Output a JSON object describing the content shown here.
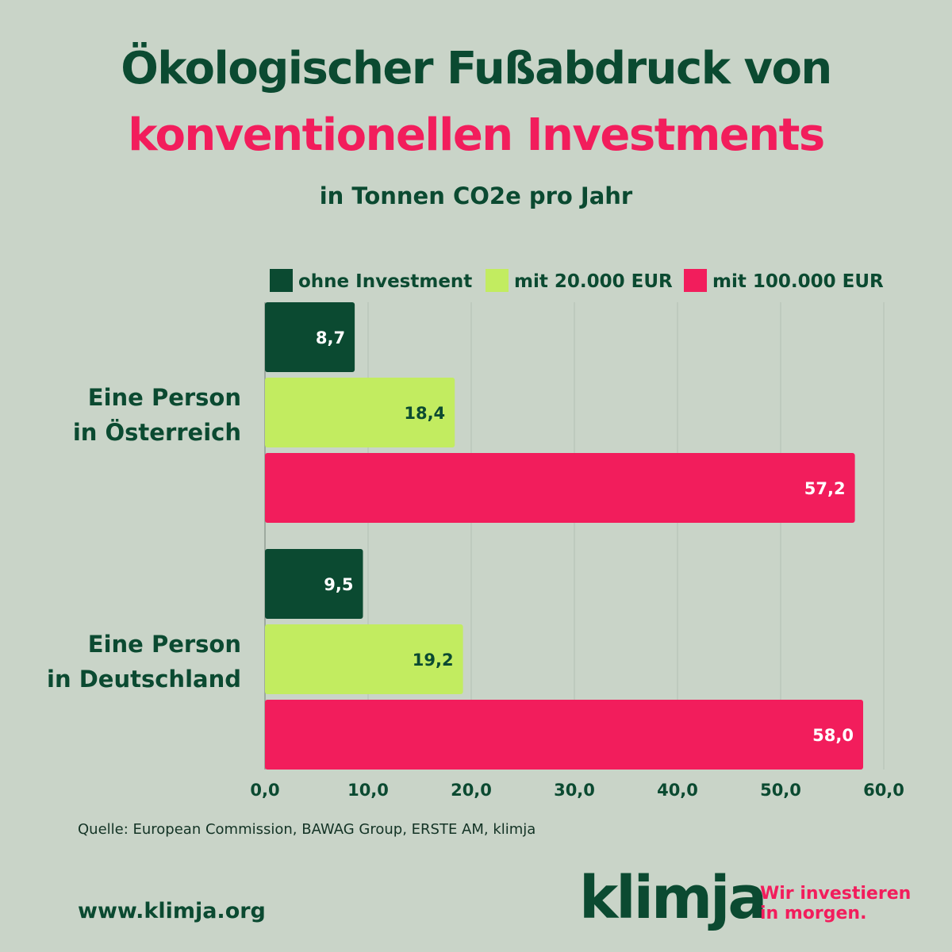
{
  "colors": {
    "background": "#c9d4c8",
    "dark_green": "#0b4a31",
    "light_green": "#c2ec60",
    "pink": "#f21d5c",
    "grid": "#b3bfb4"
  },
  "header": {
    "title_line1": "Ökologischer Fußabdruck von",
    "title_line2": "konventionellen Investments",
    "subtitle": "in Tonnen CO2e pro Jahr"
  },
  "chart_data": {
    "type": "bar",
    "orientation": "horizontal",
    "categories": [
      "Eine Person in Österreich",
      "Eine Person in Deutschland"
    ],
    "category_lines": [
      [
        "Eine Person",
        "in Österreich"
      ],
      [
        "Eine Person",
        "in Deutschland"
      ]
    ],
    "series": [
      {
        "name": "ohne Investment",
        "values": [
          8.7,
          9.5
        ],
        "labels": [
          "8,7",
          "9,5"
        ],
        "color": "#0b4a31",
        "label_color": "#ffffff"
      },
      {
        "name": "mit 20.000 EUR",
        "values": [
          18.4,
          19.2
        ],
        "labels": [
          "18,4",
          "19,2"
        ],
        "color": "#c2ec60",
        "label_color": "#0b4a31"
      },
      {
        "name": "mit 100.000 EUR",
        "values": [
          57.2,
          58.0
        ],
        "labels": [
          "57,2",
          "58,0"
        ],
        "color": "#f21d5c",
        "label_color": "#ffffff"
      }
    ],
    "xlim": [
      0,
      60
    ],
    "x_ticks": [
      0,
      10,
      20,
      30,
      40,
      50,
      60
    ],
    "x_tick_labels": [
      "0,0",
      "10,0",
      "20,0",
      "30,0",
      "40,0",
      "50,0",
      "60,0"
    ],
    "grid": true,
    "legend": "top"
  },
  "footer": {
    "source": "Quelle: European Commission, BAWAG Group, ERSTE AM, klimja",
    "website": "www.klimja.org",
    "logo": "klimja",
    "tagline_line1": "Wir investieren",
    "tagline_line2": "in morgen."
  }
}
